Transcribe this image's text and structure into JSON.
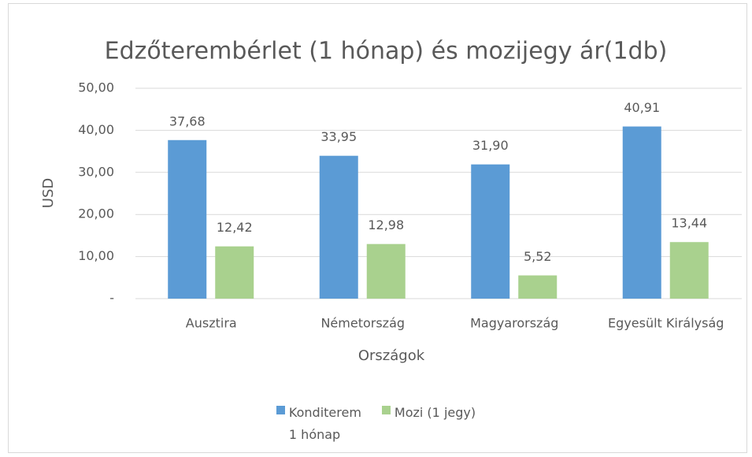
{
  "chart_data": {
    "type": "bar",
    "title": "Edzőterembérlet (1 hónap) és mozijegy ár(1db)",
    "x_label": "Országok",
    "y_label": "USD",
    "categories": [
      "Ausztira",
      "Németország",
      "Magyarország",
      "Egyesült Királyság"
    ],
    "series": [
      {
        "name": "Konditerem 1 hónap",
        "color": "#5b9bd5",
        "values": [
          37.68,
          33.95,
          31.9,
          40.91
        ],
        "value_labels": [
          "37,68",
          "33,95",
          "31,90",
          "40,91"
        ]
      },
      {
        "name": "Mozi (1 jegy)",
        "color": "#a9d18e",
        "values": [
          12.42,
          12.98,
          5.52,
          13.44
        ],
        "value_labels": [
          "12,42",
          "12,98",
          "5,52",
          "13,44"
        ]
      }
    ],
    "ylim": [
      0,
      50
    ],
    "yticks": [
      {
        "value": 0,
        "label": "-"
      },
      {
        "value": 10,
        "label": "10,00"
      },
      {
        "value": 20,
        "label": "20,00"
      },
      {
        "value": 30,
        "label": "30,00"
      },
      {
        "value": 40,
        "label": "40,00"
      },
      {
        "value": 50,
        "label": "50,00"
      }
    ],
    "grid": true,
    "legend": "bottom"
  }
}
